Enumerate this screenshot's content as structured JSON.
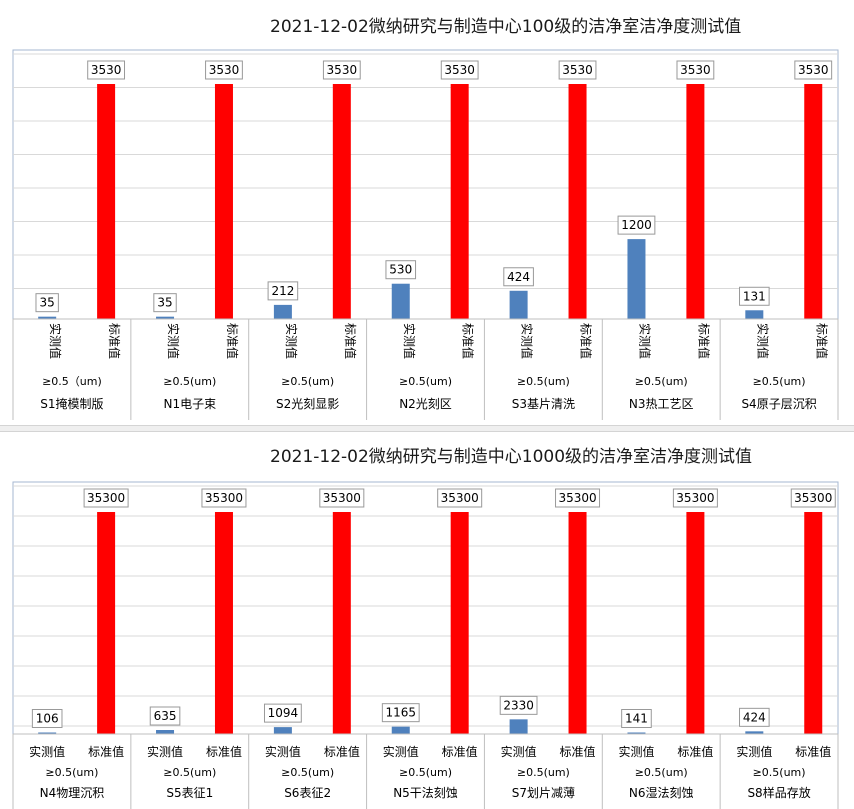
{
  "charts": [
    {
      "title": "2021-12-02微纳研究与制造中心100级的洁净室洁净度测试值",
      "chart_data": {
        "type": "bar",
        "title": "2021-12-02微纳研究与制造中心100级的洁净室洁净度测试值",
        "categories": [
          "S1掩模制版",
          "N1电子束",
          "S2光刻显影",
          "N2光刻区",
          "S3基片清洗",
          "N3热工艺区",
          "S4原子层沉积"
        ],
        "particle_size_labels": [
          "≥0.5（um)",
          "≥0.5(um)",
          "≥0.5(um)",
          "≥0.5(um)",
          "≥0.5(um)",
          "≥0.5(um)",
          "≥0.5(um)"
        ],
        "series": [
          {
            "name": "实测值",
            "values": [
              35,
              35,
              212,
              530,
              424,
              1200,
              131
            ],
            "color": "#4f81bd"
          },
          {
            "name": "标准值",
            "values": [
              3530,
              3530,
              3530,
              3530,
              3530,
              3530,
              3530
            ],
            "color": "#ff0000"
          }
        ],
        "label_orientation": "vertical",
        "ylim": [
          0,
          3530
        ],
        "grid": true
      }
    },
    {
      "title": "2021-12-02微纳研究与制造中心1000级的洁净室洁净度测试值",
      "chart_data": {
        "type": "bar",
        "title": "2021-12-02微纳研究与制造中心1000级的洁净室洁净度测试值",
        "categories": [
          "N4物理沉积",
          "S5表征1",
          "S6表征2",
          "N5干法刻蚀",
          "S7划片减薄",
          "N6湿法刻蚀",
          "S8样品存放"
        ],
        "particle_size_labels": [
          "≥0.5(um)",
          "≥0.5(um)",
          "≥0.5(um)",
          "≥0.5(um)",
          "≥0.5(um)",
          "≥0.5(um)",
          "≥0.5(um)"
        ],
        "series": [
          {
            "name": "实测值",
            "values": [
              106,
              635,
              1094,
              1165,
              2330,
              141,
              424
            ],
            "color": "#4f81bd"
          },
          {
            "name": "标准值",
            "values": [
              35300,
              35300,
              35300,
              35300,
              35300,
              35300,
              35300
            ],
            "color": "#ff0000"
          }
        ],
        "label_orientation": "horizontal",
        "ylim": [
          0,
          35300
        ],
        "grid": true
      }
    }
  ]
}
